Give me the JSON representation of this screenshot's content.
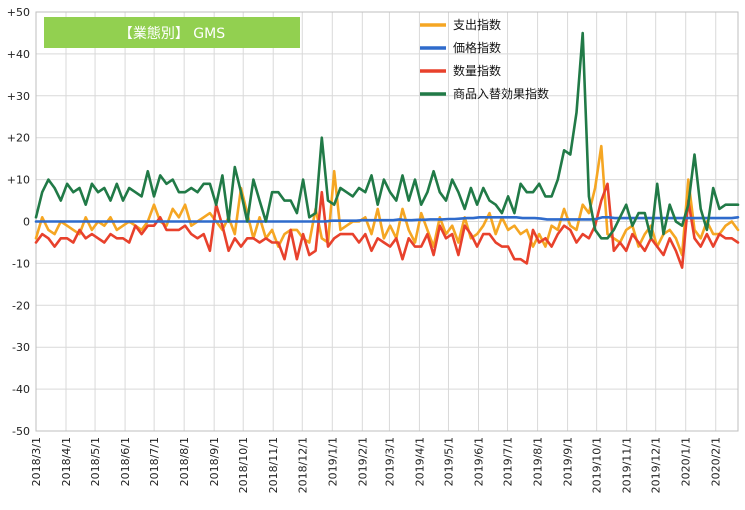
{
  "chart_data": {
    "type": "line",
    "title": "【業態別】 GMS",
    "title_bg": "#92d050",
    "ylim": [
      -50,
      50
    ],
    "y_ticks": [
      50,
      40,
      30,
      20,
      10,
      0,
      -10,
      -20,
      -30,
      -40,
      -50
    ],
    "y_tick_labels": [
      "+50",
      "+40",
      "+30",
      "+20",
      "+10",
      "0",
      "-10",
      "-20",
      "-30",
      "-40",
      "-50"
    ],
    "x_start": "2018/3/1",
    "x_end": "2020/2/24",
    "x_ticks": [
      "2018/3/1",
      "2018/4/1",
      "2018/5/1",
      "2018/6/1",
      "2018/7/1",
      "2018/8/1",
      "2018/9/1",
      "2018/10/1",
      "2018/11/1",
      "2018/12/1",
      "2019/1/1",
      "2019/2/1",
      "2019/3/1",
      "2019/4/1",
      "2019/5/1",
      "2019/6/1",
      "2019/7/1",
      "2019/8/1",
      "2019/9/1",
      "2019/10/1",
      "2019/11/1",
      "2019/12/1",
      "2020/1/1",
      "2020/2/1"
    ],
    "legend_position": "top-right",
    "grid": true,
    "series": [
      {
        "name": "支出指数",
        "color": "#f5a623",
        "values": [
          -4,
          1,
          -2,
          -3,
          0,
          -1,
          -2,
          -3,
          1,
          -2,
          0,
          -1,
          1,
          -2,
          -1,
          0,
          -1,
          -2,
          0,
          4,
          0,
          -1,
          3,
          1,
          4,
          -1,
          0,
          1,
          2,
          0,
          -2,
          1,
          -3,
          8,
          2,
          -4,
          1,
          -4,
          -2,
          -6,
          -3,
          -2,
          -2,
          -4,
          -5,
          3,
          -4,
          -5,
          12,
          -2,
          -1,
          0,
          0,
          1,
          -3,
          3,
          -4,
          -1,
          -4,
          3,
          -2,
          -5,
          2,
          -2,
          -6,
          1,
          -3,
          -1,
          -5,
          1,
          -4,
          -3,
          -1,
          2,
          -3,
          1,
          -2,
          -1,
          -3,
          -2,
          -6,
          -3,
          -6,
          -1,
          -2,
          3,
          -1,
          -2,
          4,
          2,
          8,
          18,
          -3,
          -4,
          -5,
          -2,
          -1,
          -6,
          -3,
          -1,
          -6,
          -3,
          -2,
          -4,
          -8,
          10,
          -2,
          -4,
          0,
          -3,
          -3,
          -1,
          0,
          -2
        ]
      },
      {
        "name": "価格指数",
        "color": "#2f6bcc",
        "values": [
          0,
          0,
          0,
          0,
          0,
          0,
          0,
          0,
          0,
          0,
          0,
          0,
          0,
          0,
          0,
          0,
          0,
          0,
          0,
          0,
          0,
          0,
          0,
          0,
          0,
          0,
          0,
          0,
          0,
          0,
          0,
          0,
          0,
          0,
          0,
          0,
          0,
          0,
          0,
          0,
          0,
          0,
          0,
          0,
          0,
          0,
          0,
          0,
          0.2,
          0.2,
          0.2,
          0.2,
          0.2,
          0.3,
          0.3,
          0.3,
          0.3,
          0.3,
          0.3,
          0.5,
          0.3,
          0.3,
          0.4,
          0.4,
          0.5,
          0.5,
          0.5,
          0.6,
          0.6,
          0.7,
          0.8,
          0.8,
          1,
          1,
          1,
          1,
          1,
          1,
          1,
          0.8,
          0.8,
          0.8,
          0.7,
          0.5,
          0.5,
          0.5,
          0.5,
          0.5,
          0.5,
          0.5,
          0.5,
          0.6,
          1,
          1,
          0.8,
          0.8,
          0.8,
          0.8,
          0.8,
          0.8,
          0.8,
          0.8,
          0.8,
          0.8,
          0.8,
          0.8,
          0.8,
          0.8,
          0.8,
          0.8,
          0.8,
          0.8,
          0.8,
          0.8,
          1
        ]
      },
      {
        "name": "数量指数",
        "color": "#e8412c",
        "values": [
          -5,
          -3,
          -4,
          -6,
          -4,
          -4,
          -5,
          -2,
          -4,
          -3,
          -4,
          -5,
          -3,
          -4,
          -4,
          -5,
          -1,
          -3,
          -1,
          -1,
          1,
          -2,
          -2,
          -2,
          -1,
          -3,
          -4,
          -3,
          -7,
          4,
          -1,
          -7,
          -4,
          -6,
          -4,
          -4,
          -5,
          -4,
          -5,
          -5,
          -9,
          -2,
          -9,
          -3,
          -8,
          -7,
          7,
          -6,
          -4,
          -3,
          -3,
          -3,
          -5,
          -3,
          -7,
          -4,
          -5,
          -6,
          -4,
          -9,
          -4,
          -6,
          -6,
          -3,
          -8,
          -1,
          -4,
          -3,
          -8,
          -1,
          -3,
          -6,
          -3,
          -3,
          -5,
          -6,
          -6,
          -9,
          -9,
          -10,
          -2,
          -5,
          -4,
          -6,
          -3,
          -1,
          -2,
          -5,
          -3,
          -4,
          -1,
          5,
          9,
          -7,
          -5,
          -7,
          -3,
          -5,
          -7,
          -4,
          -6,
          -8,
          -4,
          -7,
          -11,
          5,
          -4,
          -6,
          -3,
          -6,
          -3,
          -4,
          -4,
          -5
        ]
      },
      {
        "name": "商品入替効果指数",
        "color": "#217a47",
        "values": [
          1,
          7,
          10,
          8,
          5,
          9,
          7,
          8,
          4,
          9,
          7,
          8,
          5,
          9,
          5,
          8,
          7,
          6,
          12,
          6,
          11,
          9,
          10,
          7,
          7,
          8,
          7,
          9,
          9,
          4,
          11,
          0,
          13,
          7,
          0,
          10,
          5,
          0,
          7,
          7,
          5,
          5,
          2,
          10,
          1,
          2,
          20,
          5,
          4,
          8,
          7,
          6,
          8,
          7,
          11,
          4,
          10,
          7,
          5,
          11,
          5,
          10,
          4,
          7,
          12,
          7,
          5,
          10,
          7,
          3,
          8,
          4,
          8,
          5,
          4,
          2,
          6,
          2,
          9,
          7,
          7,
          9,
          6,
          6,
          10,
          17,
          16,
          26,
          45,
          6,
          -2,
          -4,
          -4,
          -2,
          1,
          4,
          -1,
          2,
          2,
          -4,
          9,
          -3,
          4,
          0,
          -1,
          4,
          16,
          3,
          -2,
          8,
          3,
          4,
          4,
          4
        ]
      }
    ]
  }
}
